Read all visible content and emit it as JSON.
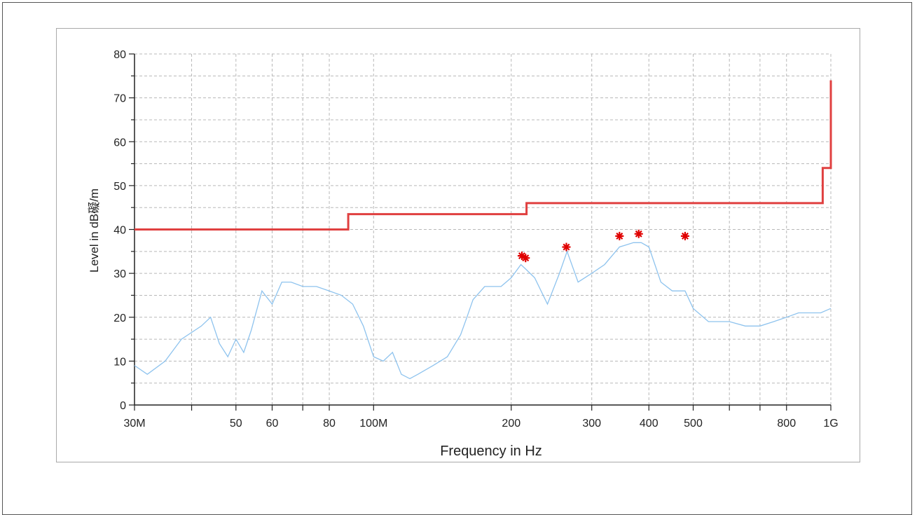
{
  "chart_data": {
    "type": "line",
    "title": "",
    "xlabel": "Frequency in Hz",
    "ylabel": "Level in dB礙/m",
    "x_scale": "log",
    "xlim": [
      30000000,
      1000000000
    ],
    "ylim": [
      0,
      80
    ],
    "grid": true,
    "x_ticks": [
      {
        "value": 30000000,
        "label": "30M"
      },
      {
        "value": 40000000,
        "label": ""
      },
      {
        "value": 50000000,
        "label": "50"
      },
      {
        "value": 60000000,
        "label": "60"
      },
      {
        "value": 70000000,
        "label": ""
      },
      {
        "value": 80000000,
        "label": "80"
      },
      {
        "value": 100000000,
        "label": "100M"
      },
      {
        "value": 200000000,
        "label": "200"
      },
      {
        "value": 300000000,
        "label": "300"
      },
      {
        "value": 400000000,
        "label": "400"
      },
      {
        "value": 500000000,
        "label": "500"
      },
      {
        "value": 600000000,
        "label": ""
      },
      {
        "value": 700000000,
        "label": ""
      },
      {
        "value": 800000000,
        "label": "800"
      },
      {
        "value": 1000000000,
        "label": "1G"
      }
    ],
    "y_ticks": [
      0,
      10,
      20,
      30,
      40,
      50,
      60,
      70,
      80
    ],
    "series": [
      {
        "kind": "limit",
        "color": "#e04040",
        "x": [
          30000000,
          88000000,
          88000000,
          216000000,
          216000000,
          960000000,
          960000000,
          1000000000,
          1000000000
        ],
        "y": [
          40,
          40,
          43.5,
          43.5,
          46,
          46,
          54,
          54,
          74
        ]
      },
      {
        "kind": "measurement",
        "color": "#8ec3ee",
        "x": [
          30000000,
          32000000,
          35000000,
          38000000,
          42000000,
          44000000,
          46000000,
          48000000,
          50000000,
          52000000,
          54000000,
          57000000,
          60000000,
          63000000,
          66000000,
          70000000,
          75000000,
          80000000,
          85000000,
          90000000,
          95000000,
          100000000,
          105000000,
          110000000,
          115000000,
          120000000,
          125000000,
          135000000,
          145000000,
          155000000,
          160000000,
          165000000,
          175000000,
          190000000,
          200000000,
          210000000,
          215000000,
          225000000,
          240000000,
          255000000,
          265000000,
          280000000,
          300000000,
          320000000,
          345000000,
          370000000,
          385000000,
          400000000,
          425000000,
          450000000,
          480000000,
          500000000,
          540000000,
          600000000,
          650000000,
          700000000,
          750000000,
          800000000,
          850000000,
          900000000,
          950000000,
          1000000000
        ],
        "y": [
          9,
          7,
          10,
          15,
          18,
          20,
          14,
          11,
          15,
          12,
          17,
          26,
          23,
          28,
          28,
          27,
          27,
          26,
          25,
          23,
          18,
          11,
          10,
          12,
          7,
          6,
          7,
          9,
          11,
          16,
          20,
          24,
          27,
          27,
          29,
          32,
          31,
          29,
          23,
          30,
          35,
          28,
          30,
          32,
          36,
          37,
          37,
          36,
          28,
          26,
          26,
          22,
          19,
          19,
          18,
          18,
          19,
          20,
          21,
          21,
          21,
          22
        ]
      },
      {
        "kind": "peak-markers",
        "color": "#e00000",
        "x": [
          211000000,
          215000000,
          264000000,
          345000000,
          380000000,
          480000000
        ],
        "y": [
          34,
          33.5,
          36,
          38.5,
          39,
          38.5
        ]
      }
    ]
  }
}
